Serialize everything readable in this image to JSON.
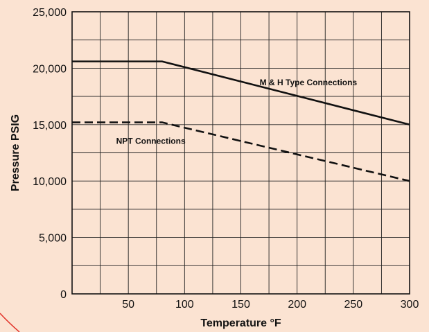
{
  "colors": {
    "background": "#fbe3d2",
    "plot_background": "#fbe3d2",
    "grid": "#222222",
    "series": "#111111",
    "corner_accent": "#e2342b"
  },
  "chart_data": {
    "type": "line",
    "title": "",
    "xlabel": "Temperature °F",
    "ylabel": "Pressure PSIG",
    "xlim": [
      0,
      300
    ],
    "ylim": [
      0,
      25000
    ],
    "grid": true,
    "x_ticks": [
      50,
      100,
      150,
      200,
      250,
      300
    ],
    "x_tick_labels": [
      "50",
      "100",
      "150",
      "200",
      "250",
      "300"
    ],
    "x_gridlines": [
      0,
      25,
      50,
      75,
      100,
      125,
      150,
      175,
      200,
      225,
      250,
      275,
      300
    ],
    "y_ticks": [
      0,
      5000,
      10000,
      15000,
      20000,
      25000
    ],
    "y_tick_labels": [
      "0",
      "5,000",
      "10,000",
      "15,000",
      "20,000",
      "25,000"
    ],
    "y_gridlines": [
      0,
      2500,
      5000,
      7500,
      10000,
      12500,
      15000,
      17500,
      20000,
      22500,
      25000
    ],
    "series": [
      {
        "name": "M & H Type Connections",
        "style": "solid",
        "x": [
          0,
          80,
          300
        ],
        "y": [
          20600,
          20600,
          15000
        ]
      },
      {
        "name": "NPT Connections",
        "style": "dashed",
        "x": [
          0,
          80,
          300
        ],
        "y": [
          15200,
          15200,
          10000
        ]
      }
    ],
    "annotations": [
      {
        "text": "M & H Type Connections",
        "x": 210,
        "y": 18500
      },
      {
        "text": "NPT Connections",
        "x": 70,
        "y": 13300
      }
    ]
  }
}
